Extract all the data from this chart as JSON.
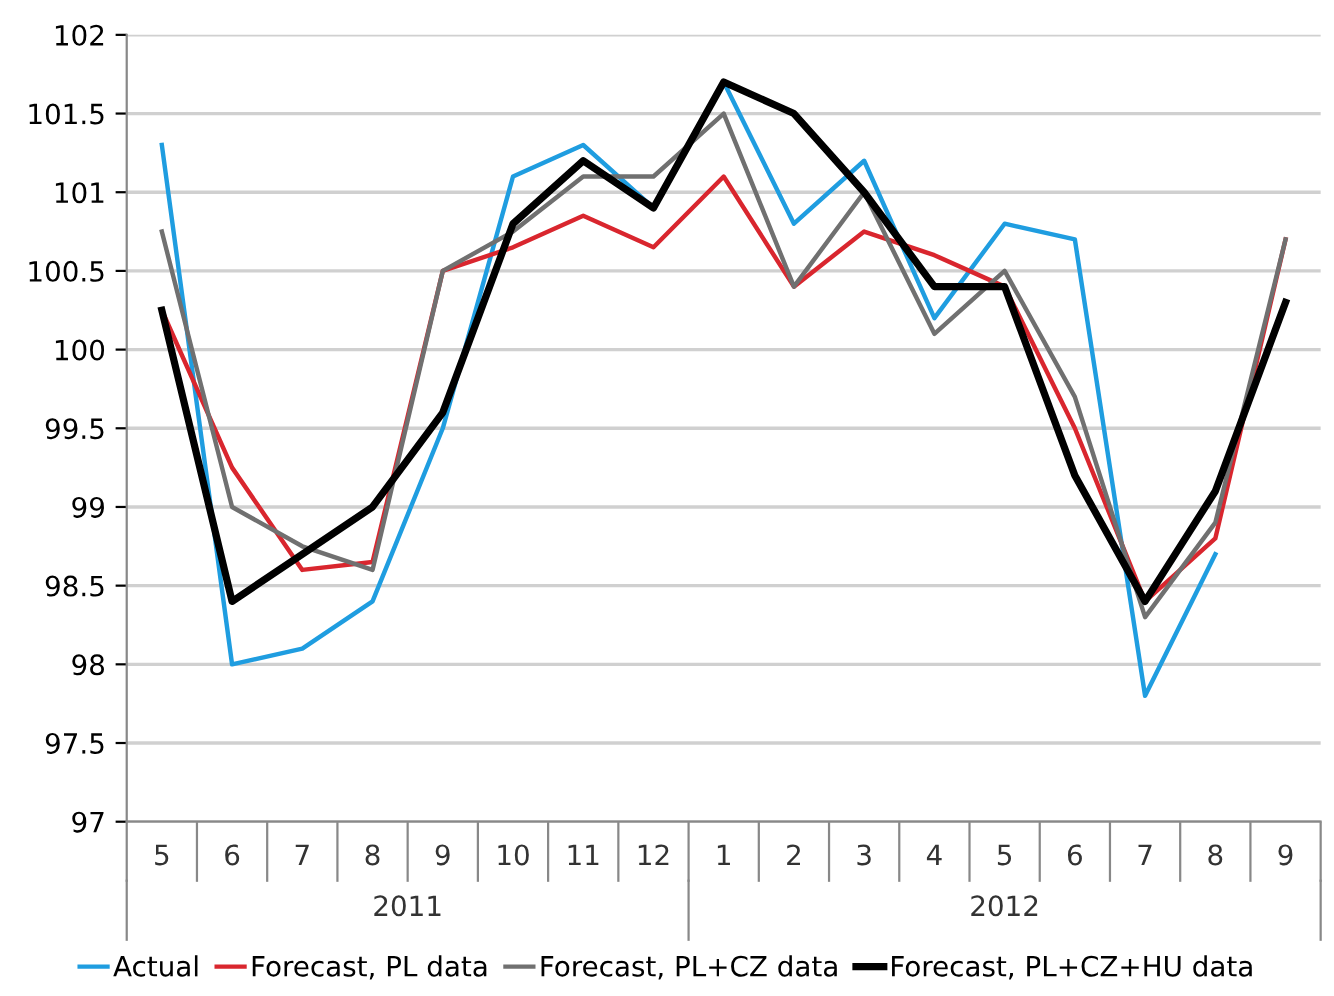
{
  "chart_data": {
    "type": "line",
    "categories": [
      "5",
      "6",
      "7",
      "8",
      "9",
      "10",
      "11",
      "12",
      "1",
      "2",
      "3",
      "4",
      "5",
      "6",
      "7",
      "8",
      "9"
    ],
    "annotations": [
      "2011",
      "2012"
    ],
    "series": [
      {
        "name": "Actual",
        "color": "#1f9de0",
        "values": [
          101.3,
          98.0,
          98.1,
          98.4,
          99.5,
          101.1,
          101.3,
          100.9,
          101.7,
          100.8,
          101.2,
          100.2,
          100.8,
          100.7,
          97.8,
          98.7,
          null
        ]
      },
      {
        "name": "Forecast, PL data",
        "color": "#d9262e",
        "values": [
          100.25,
          99.25,
          98.6,
          98.65,
          100.5,
          100.65,
          100.85,
          100.65,
          101.1,
          100.4,
          100.75,
          100.6,
          100.4,
          99.5,
          98.4,
          98.8,
          100.7
        ]
      },
      {
        "name": "Forecast, PL+CZ data",
        "color": "#707070",
        "values": [
          100.75,
          99.0,
          98.75,
          98.6,
          100.5,
          100.75,
          101.1,
          101.1,
          101.5,
          100.4,
          101.0,
          100.1,
          100.5,
          99.7,
          98.3,
          98.9,
          100.7
        ]
      },
      {
        "name": "Forecast, PL+CZ+HU data",
        "color": "#000000",
        "values": [
          100.25,
          98.4,
          98.7,
          99.0,
          99.6,
          100.8,
          101.2,
          100.9,
          101.7,
          101.5,
          101.0,
          100.4,
          100.4,
          99.2,
          98.4,
          99.1,
          100.3
        ]
      }
    ],
    "ylim": [
      97,
      102
    ],
    "yticks": [
      97,
      97.5,
      98,
      98.5,
      99,
      99.5,
      100,
      100.5,
      101,
      101.5,
      102
    ],
    "grid": "y",
    "legend": "bottom",
    "marker": "none",
    "line_style": "solid"
  }
}
